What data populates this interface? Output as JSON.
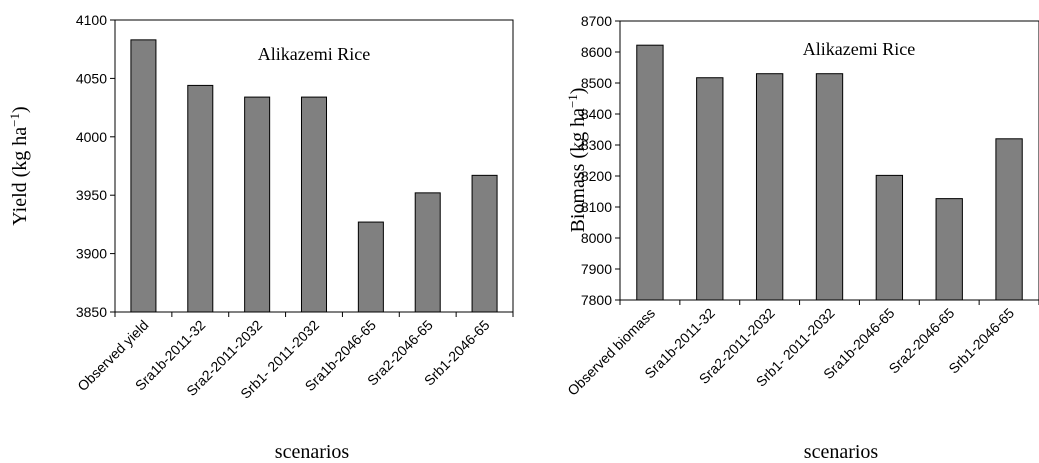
{
  "chart_data": [
    {
      "type": "bar",
      "title": "Alikazemi Rice",
      "xlabel": "scenarios",
      "ylabel_main": "Yield (kg ha",
      "ylabel_sup": "−1",
      "ylabel_close": ")",
      "ylim": [
        3850,
        4100
      ],
      "yticks": [
        3850,
        3900,
        3950,
        4000,
        4050,
        4100
      ],
      "categories": [
        "Observed yield",
        "Sra1b-2011-32",
        "Sra2-2011-2032",
        "Srb1- 2011-2032",
        "Sra1b-2046-65",
        "Sra2-2046-65",
        "Srb1-2046-65"
      ],
      "values": [
        4083,
        4044,
        4034,
        4034,
        3927,
        3952,
        3967
      ],
      "bar_color": "#808080",
      "grid": false,
      "legend": "none"
    },
    {
      "type": "bar",
      "title": "Alikazemi Rice",
      "xlabel": "scenarios",
      "ylabel_main": "Biomass  (kg ha",
      "ylabel_sup": "−1",
      "ylabel_close": ")",
      "ylim": [
        7800,
        8700
      ],
      "yticks": [
        7800,
        7900,
        8000,
        8100,
        8200,
        8300,
        8400,
        8500,
        8600,
        8700
      ],
      "categories": [
        "Observed biomass",
        "Sra1b-2011-32",
        "Sra2-2011-2032",
        "Srb1- 2011-2032",
        "Sra1b-2046-65",
        "Sra2-2046-65",
        "Srb1-2046-65"
      ],
      "values": [
        8622,
        8517,
        8530,
        8530,
        8202,
        8127,
        8320
      ],
      "bar_color": "#808080",
      "grid": false,
      "legend": "none"
    }
  ]
}
